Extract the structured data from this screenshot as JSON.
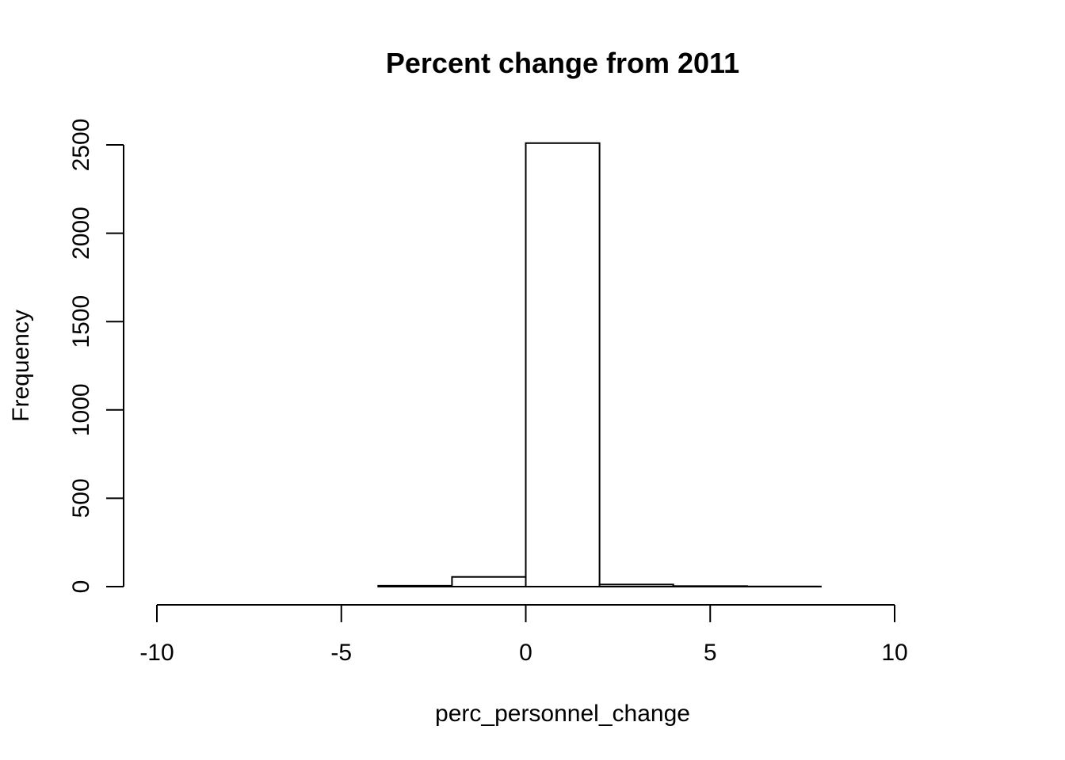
{
  "chart_data": {
    "type": "bar",
    "title": "Percent change from 2011",
    "xlabel": "perc_personnel_change",
    "ylabel": "Frequency",
    "bins": [
      {
        "x0": -10,
        "x1": -8,
        "count": 0
      },
      {
        "x0": -8,
        "x1": -6,
        "count": 0
      },
      {
        "x0": -6,
        "x1": -4,
        "count": 0
      },
      {
        "x0": -4,
        "x1": -2,
        "count": 5
      },
      {
        "x0": -2,
        "x1": 0,
        "count": 55
      },
      {
        "x0": 0,
        "x1": 2,
        "count": 2510
      },
      {
        "x0": 2,
        "x1": 4,
        "count": 12
      },
      {
        "x0": 4,
        "x1": 6,
        "count": 3
      },
      {
        "x0": 6,
        "x1": 8,
        "count": 1
      },
      {
        "x0": 8,
        "x1": 10,
        "count": 0
      },
      {
        "x0": 10,
        "x1": 12,
        "count": 0
      }
    ],
    "xticks": [
      -10,
      -5,
      0,
      5,
      10
    ],
    "xtick_labels": [
      "-10",
      "-5",
      "0",
      "5",
      "10"
    ],
    "yticks": [
      0,
      500,
      1000,
      1500,
      2000,
      2500
    ],
    "ytick_labels": [
      "0",
      "500",
      "1000",
      "1500",
      "2000",
      "2500"
    ],
    "xlim": [
      -10,
      12
    ],
    "ylim": [
      0,
      2500
    ],
    "grid": false,
    "legend": false
  }
}
